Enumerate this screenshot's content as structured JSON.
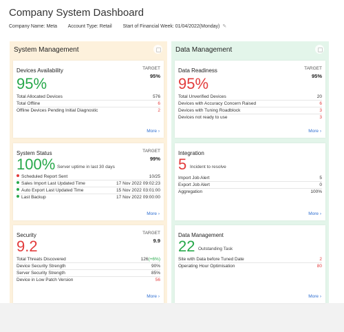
{
  "header": {
    "title": "Company System Dashboard",
    "company": "Company Name: Meta",
    "account": "Account Type: Retail",
    "financial_week": "Start of Financial Week: 01/04/2022(Monday)"
  },
  "more_label": "More ›",
  "target_label": "TARGET",
  "left": {
    "title": "System Management",
    "devices": {
      "title": "Devices Availability",
      "target": "95%",
      "value": "95%",
      "rows": [
        {
          "label": "Total Allocated Devices",
          "value": "576"
        },
        {
          "label": "Total Offline",
          "value": "6"
        },
        {
          "label": "Offline Devices Pending Initial Diagnostic",
          "value": "2"
        }
      ]
    },
    "status": {
      "title": "System Status",
      "target": "99%",
      "value": "100%",
      "note": "Server uptime in last 30 days",
      "rows": [
        {
          "label": "Scheduled Report Sent",
          "value": "10/25",
          "dot": "red"
        },
        {
          "label": "Sales Import Last Updated Time",
          "value": "17 Nov 2022 09:02:23",
          "dot": "green"
        },
        {
          "label": "Auto Export Last Updated Time",
          "value": "15 Nov 2022 03:01:00",
          "dot": "green"
        },
        {
          "label": "Last Backup",
          "value": "17 Nov 2022 09:00:00",
          "dot": "green"
        }
      ]
    },
    "security": {
      "title": "Security",
      "target": "9.9",
      "value": "9.2",
      "rows": [
        {
          "label": "Total Threats Discovered",
          "value": "126",
          "change": "(+6%)"
        },
        {
          "label": "Device Security Strength",
          "value": "90%"
        },
        {
          "label": "Server Security Strength",
          "value": "85%"
        },
        {
          "label": "Device in Low Patch Version",
          "value": "56"
        }
      ]
    }
  },
  "right": {
    "title": "Data Management",
    "readiness": {
      "title": "Data Readiness",
      "target": "95%",
      "value": "95%",
      "rows": [
        {
          "label": "Total Unverified Devices",
          "value": "20"
        },
        {
          "label": "Devices with Accuracy Concern Raised",
          "value": "6"
        },
        {
          "label": "Devices with Tuning Roadblock",
          "value": "3"
        },
        {
          "label": "Devices not ready to use",
          "value": "3"
        }
      ]
    },
    "integration": {
      "title": "Integration",
      "value": "5",
      "note": "Incident to resolve",
      "rows": [
        {
          "label": "Import Job Alert",
          "value": "5"
        },
        {
          "label": "Export Job Alert",
          "value": "0"
        },
        {
          "label": "Aggregation",
          "value": "100%"
        }
      ]
    },
    "data_mgmt": {
      "title": "Data Management",
      "value": "22",
      "note": "Outstanding Task",
      "rows": [
        {
          "label": "Site with Data before Tuned Date",
          "value": "2"
        },
        {
          "label": "Operating Hour Optimisation",
          "value": "80"
        }
      ]
    }
  }
}
